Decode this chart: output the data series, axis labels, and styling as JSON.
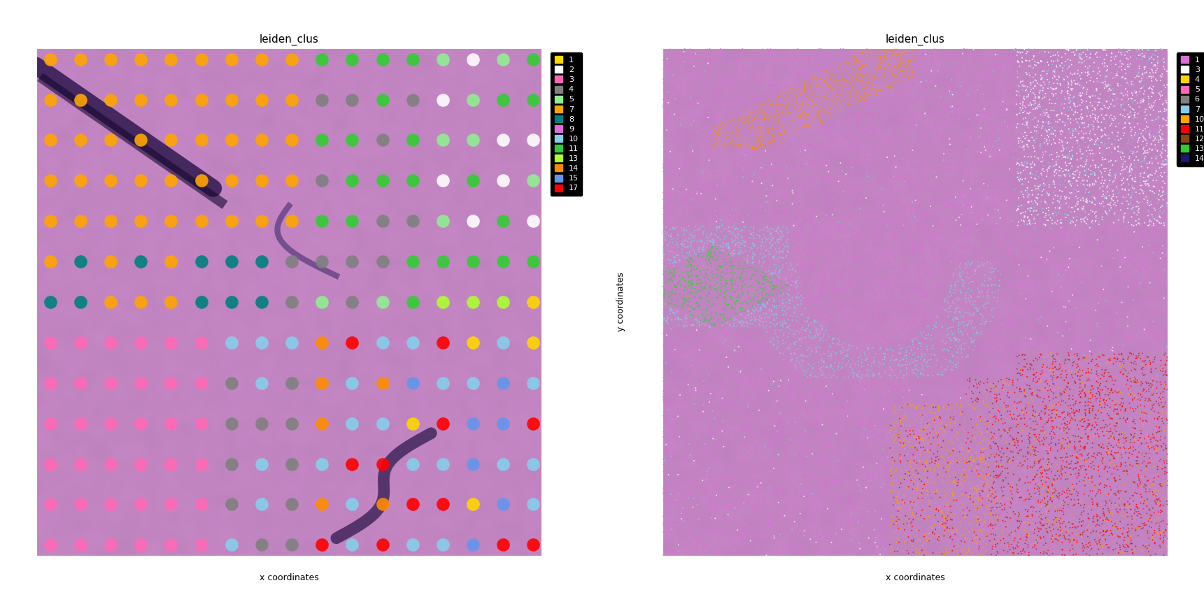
{
  "title": "leiden_clus",
  "xlabel": "x coordinates",
  "ylabel": "y coordinates",
  "xlim": [
    3900,
    7100
  ],
  "ylim": [
    -6500,
    -3600
  ],
  "background_color": "#000000",
  "figure_background": "#ffffff",
  "plot_bg": "#000000",
  "left_legend_labels": [
    "1",
    "2",
    "3",
    "4",
    "5",
    "7",
    "8",
    "9",
    "10",
    "11",
    "13",
    "14",
    "15",
    "17"
  ],
  "left_legend_colors": [
    "#FFD700",
    "#FFFFFF",
    "#FF69B4",
    "#808080",
    "#90EE90",
    "#FFA500",
    "#008080",
    "#DA70D6",
    "#87CEEB",
    "#32CD32",
    "#ADFF2F",
    "#FF8C00",
    "#6495ED",
    "#FF0000"
  ],
  "right_legend_labels": [
    "1",
    "3",
    "4",
    "5",
    "6",
    "7",
    "10",
    "11",
    "12",
    "13",
    "14"
  ],
  "right_legend_colors": [
    "#DA70D6",
    "#FFFFFF",
    "#FFD700",
    "#FF69B4",
    "#808080",
    "#87CEEB",
    "#FFA500",
    "#FF0000",
    "#8B4513",
    "#32CD32",
    "#191970"
  ],
  "left_spot_colors": {
    "orange": "#FFA500",
    "teal": "#008080",
    "green": "#32CD32",
    "light_green": "#90EE90",
    "white": "#FFFFFF",
    "gray": "#808080",
    "pink": "#FF69B4",
    "yellow": "#FFD700",
    "light_blue": "#87CEEB",
    "red": "#FF0000",
    "yellow_green": "#ADFF2F",
    "dark_orange": "#FF8C00",
    "blue": "#6495ED"
  }
}
